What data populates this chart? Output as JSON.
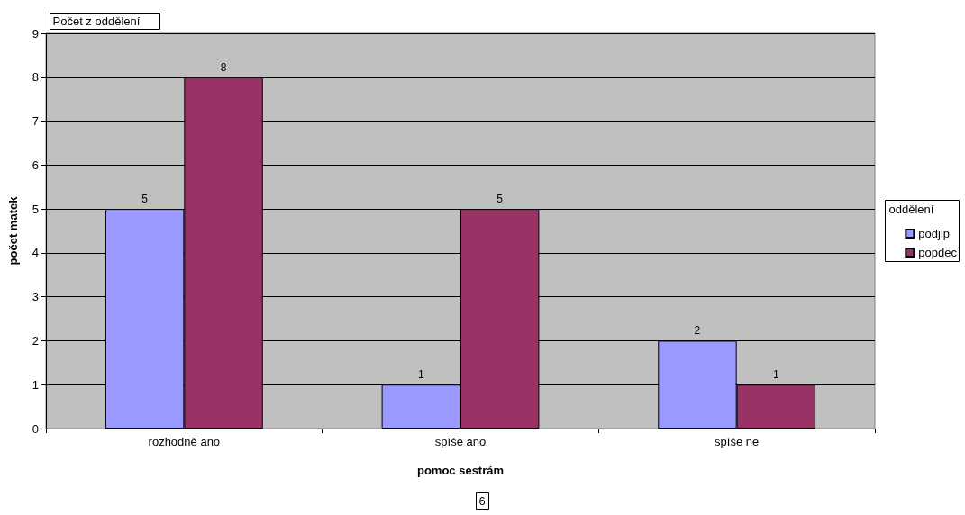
{
  "chart_data": {
    "type": "bar",
    "title": "Počet z oddělení",
    "xlabel": "pomoc sestrám",
    "ylabel": "počet matek",
    "legend_title": "oddělení",
    "annotations": [
      "6"
    ],
    "categories": [
      "rozhodně ano",
      "spíše ano",
      "spíše ne"
    ],
    "series": [
      {
        "name": "podjip",
        "color": "#9999ff",
        "values": [
          5,
          1,
          2
        ]
      },
      {
        "name": "popdec",
        "color": "#993366",
        "values": [
          8,
          5,
          1
        ]
      }
    ],
    "ylim": [
      0,
      9
    ],
    "yticks": [
      0,
      1,
      2,
      3,
      4,
      5,
      6,
      7,
      8,
      9
    ],
    "grid": "y",
    "legend": "right",
    "data_labels": true
  }
}
